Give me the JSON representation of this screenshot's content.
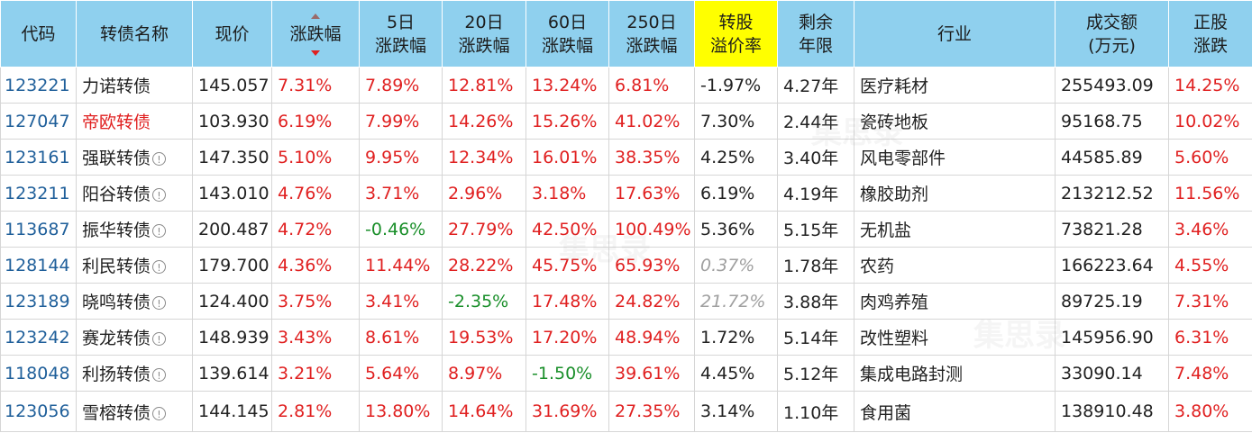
{
  "headers": {
    "code": "代码",
    "name": "转债名称",
    "price": "现价",
    "change": "涨跌幅",
    "chg5_l1": "5日",
    "chg5_l2": "涨跌幅",
    "chg20_l1": "20日",
    "chg20_l2": "涨跌幅",
    "chg60_l1": "60日",
    "chg60_l2": "涨跌幅",
    "chg250_l1": "250日",
    "chg250_l2": "涨跌幅",
    "premium_l1": "转股",
    "premium_l2": "溢价率",
    "remain_l1": "剩余",
    "remain_l2": "年限",
    "industry": "行业",
    "volume_l1": "成交额",
    "volume_l2": "(万元)",
    "stock_l1": "正股",
    "stock_l2": "涨跌"
  },
  "watermark": "集思录",
  "rows": [
    {
      "code": "123221",
      "name": "力诺转债",
      "price": "145.057",
      "change": "7.31%",
      "chg5": "7.89%",
      "chg20": "12.81%",
      "chg60": "13.24%",
      "chg250": "6.81%",
      "premium": "-1.97%",
      "remain": "4.27年",
      "industry": "医疗耗材",
      "volume": "255493.09",
      "stock": "14.25%"
    },
    {
      "code": "127047",
      "name": "帝欧转债",
      "price": "103.930",
      "change": "6.19%",
      "chg5": "7.99%",
      "chg20": "14.26%",
      "chg60": "15.26%",
      "chg250": "41.02%",
      "premium": "7.30%",
      "remain": "2.44年",
      "industry": "瓷砖地板",
      "volume": "95168.75",
      "stock": "10.02%"
    },
    {
      "code": "123161",
      "name": "强联转债",
      "price": "147.350",
      "change": "5.10%",
      "chg5": "9.95%",
      "chg20": "12.34%",
      "chg60": "16.01%",
      "chg250": "38.35%",
      "premium": "4.25%",
      "remain": "3.40年",
      "industry": "风电零部件",
      "volume": "44585.89",
      "stock": "5.60%"
    },
    {
      "code": "123211",
      "name": "阳谷转债",
      "price": "143.010",
      "change": "4.76%",
      "chg5": "3.71%",
      "chg20": "2.96%",
      "chg60": "3.18%",
      "chg250": "17.63%",
      "premium": "6.19%",
      "remain": "4.19年",
      "industry": "橡胶助剂",
      "volume": "213212.52",
      "stock": "11.56%"
    },
    {
      "code": "113687",
      "name": "振华转债",
      "price": "200.487",
      "change": "4.72%",
      "chg5": "-0.46%",
      "chg20": "27.79%",
      "chg60": "42.50%",
      "chg250": "100.49%",
      "premium": "5.36%",
      "remain": "5.15年",
      "industry": "无机盐",
      "volume": "73821.28",
      "stock": "3.46%"
    },
    {
      "code": "128144",
      "name": "利民转债",
      "price": "179.700",
      "change": "4.36%",
      "chg5": "11.44%",
      "chg20": "28.22%",
      "chg60": "45.75%",
      "chg250": "65.93%",
      "premium": "0.37%",
      "remain": "1.78年",
      "industry": "农药",
      "volume": "166223.64",
      "stock": "4.55%"
    },
    {
      "code": "123189",
      "name": "晓鸣转债",
      "price": "124.400",
      "change": "3.75%",
      "chg5": "3.41%",
      "chg20": "-2.35%",
      "chg60": "17.48%",
      "chg250": "24.82%",
      "premium": "21.72%",
      "remain": "3.88年",
      "industry": "肉鸡养殖",
      "volume": "89725.19",
      "stock": "7.31%"
    },
    {
      "code": "123242",
      "name": "赛龙转债",
      "price": "148.939",
      "change": "3.43%",
      "chg5": "8.61%",
      "chg20": "19.53%",
      "chg60": "17.20%",
      "chg250": "48.94%",
      "premium": "1.72%",
      "remain": "5.14年",
      "industry": "改性塑料",
      "volume": "145956.90",
      "stock": "6.31%"
    },
    {
      "code": "118048",
      "name": "利扬转债",
      "price": "139.614",
      "change": "3.21%",
      "chg5": "5.64%",
      "chg20": "8.97%",
      "chg60": "-1.50%",
      "chg250": "39.61%",
      "premium": "4.45%",
      "remain": "5.12年",
      "industry": "集成电路封测",
      "volume": "33090.14",
      "stock": "7.48%"
    },
    {
      "code": "123056",
      "name": "雪榕转债",
      "price": "144.145",
      "change": "2.81%",
      "chg5": "13.80%",
      "chg20": "14.64%",
      "chg60": "31.69%",
      "chg250": "27.35%",
      "premium": "3.14%",
      "remain": "1.10年",
      "industry": "食用菌",
      "volume": "138910.48",
      "stock": "3.80%"
    }
  ]
}
